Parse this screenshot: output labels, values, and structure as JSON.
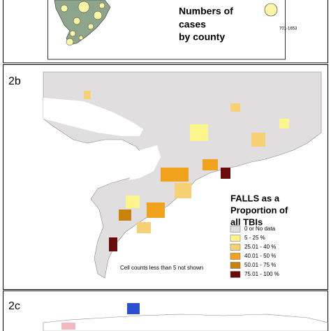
{
  "panel_a": {
    "title_lines": [
      "Numbers of",
      "cases",
      "by county"
    ],
    "legend_label": "701-1653"
  },
  "panel_b": {
    "label": "2b",
    "legend_title_lines": [
      "FALLS as a",
      "Proportion of",
      "all TBIs"
    ],
    "legend": [
      {
        "label": "0 or No data",
        "color": "#e0dede"
      },
      {
        "label": "5 - 25 %",
        "color": "#fbf58c"
      },
      {
        "label": "25.01 - 40  %",
        "color": "#f7cf74"
      },
      {
        "label": "40.01 - 50 %",
        "color": "#f0a21c"
      },
      {
        "label": "50.01 - 75 %",
        "color": "#c9830d"
      },
      {
        "label": "75.01 - 100 %",
        "color": "#6b0a0a"
      }
    ],
    "note": "Cell counts less than 5 not shown"
  },
  "panel_c": {
    "label": "2c"
  }
}
